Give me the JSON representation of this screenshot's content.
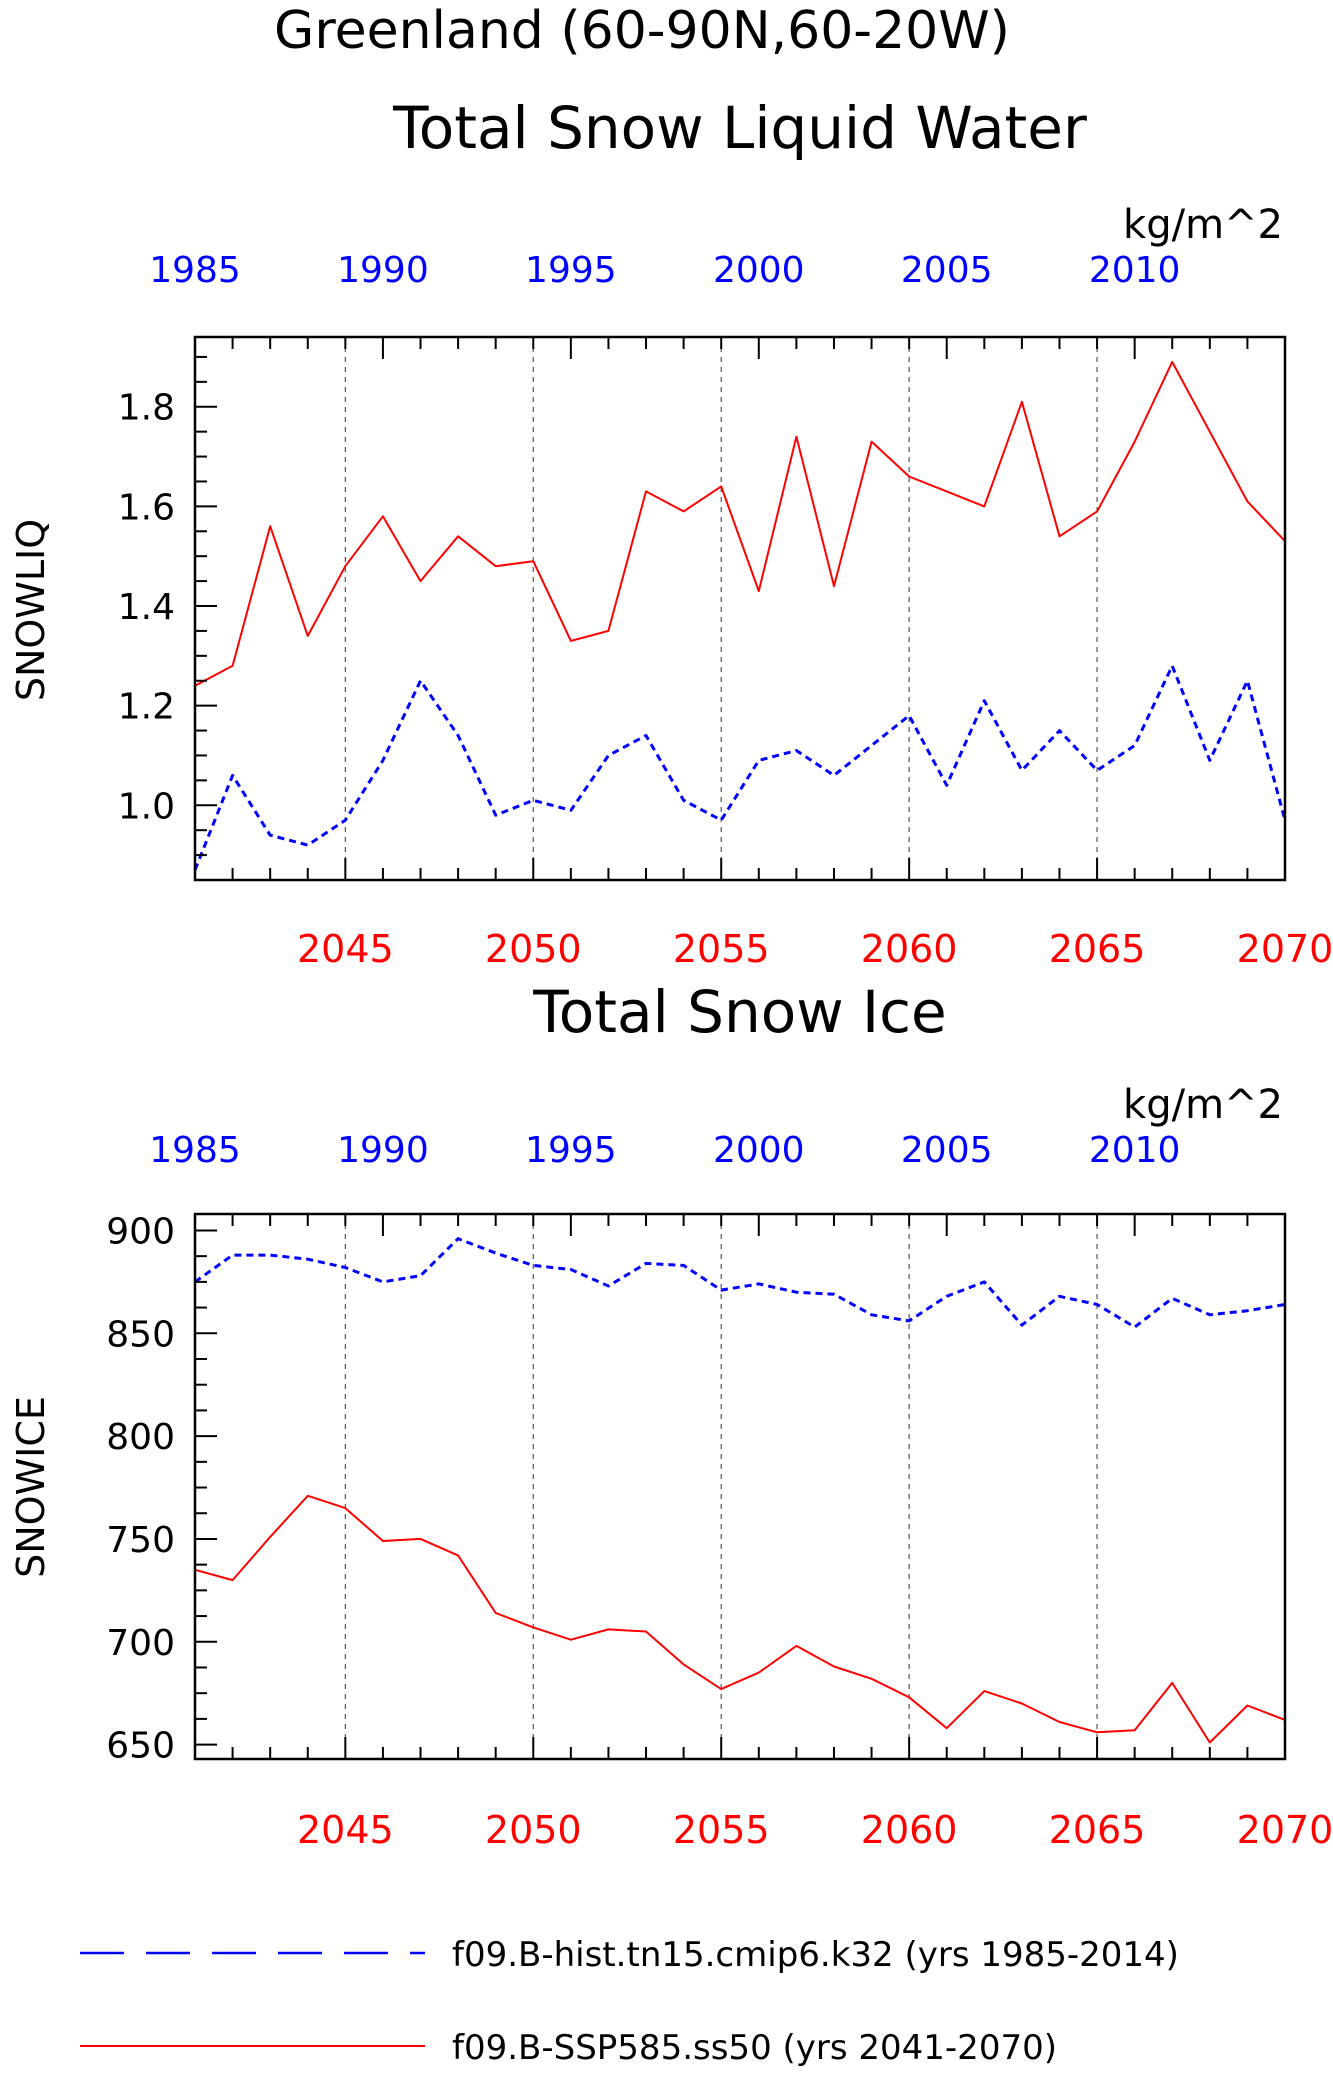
{
  "figure": {
    "title_line1": "Greenland (60-90N,60-20W)",
    "legend": [
      {
        "label": "f09.B-hist.tn15.cmip6.k32 (yrs 1985-2014)",
        "color": "#0000ff",
        "style": "dashed"
      },
      {
        "label": "f09.B-SSP585.ss50 (yrs 2041-2070)",
        "color": "#ff0000",
        "style": "solid"
      }
    ]
  },
  "chart_data": [
    {
      "type": "line",
      "title": "Total Snow Liquid Water",
      "units": "kg/m^2",
      "ylabel": "SNOWLIQ",
      "ylim": [
        0.85,
        1.94
      ],
      "yticks": [
        1.0,
        1.2,
        1.4,
        1.6,
        1.8
      ],
      "ytick_labels": [
        "1.0",
        "1.2",
        "1.4",
        "1.6",
        "1.8"
      ],
      "x_bottom": {
        "range": [
          2041,
          2070
        ],
        "ticks": [
          2045,
          2050,
          2055,
          2060,
          2065,
          2070
        ],
        "color": "#ff0000"
      },
      "x_top": {
        "range": [
          1985,
          2014
        ],
        "ticks": [
          1985,
          1990,
          1995,
          2000,
          2005,
          2010
        ],
        "color": "#0000ff"
      },
      "grid": "vertical dashed at labelled bottom ticks",
      "series": [
        {
          "name": "f09.B-SSP585.ss50 (yrs 2041-2070)",
          "axis": "bottom",
          "color": "#ff0000",
          "style": "solid",
          "x": [
            2041,
            2042,
            2043,
            2044,
            2045,
            2046,
            2047,
            2048,
            2049,
            2050,
            2051,
            2052,
            2053,
            2054,
            2055,
            2056,
            2057,
            2058,
            2059,
            2060,
            2061,
            2062,
            2063,
            2064,
            2065,
            2066,
            2067,
            2068,
            2069,
            2070
          ],
          "values": [
            1.24,
            1.28,
            1.56,
            1.34,
            1.48,
            1.58,
            1.45,
            1.54,
            1.48,
            1.49,
            1.33,
            1.35,
            1.63,
            1.59,
            1.64,
            1.43,
            1.74,
            1.44,
            1.73,
            1.66,
            1.63,
            1.6,
            1.81,
            1.54,
            1.59,
            1.73,
            1.89,
            1.75,
            1.61,
            1.53
          ]
        },
        {
          "name": "f09.B-hist.tn15.cmip6.k32 (yrs 1985-2014)",
          "axis": "top",
          "color": "#0000ff",
          "style": "dashed",
          "x": [
            1985,
            1986,
            1987,
            1988,
            1989,
            1990,
            1991,
            1992,
            1993,
            1994,
            1995,
            1996,
            1997,
            1998,
            1999,
            2000,
            2001,
            2002,
            2003,
            2004,
            2005,
            2006,
            2007,
            2008,
            2009,
            2010,
            2011,
            2012,
            2013,
            2014
          ],
          "values": [
            0.87,
            1.06,
            0.94,
            0.92,
            0.97,
            1.09,
            1.25,
            1.14,
            0.98,
            1.01,
            0.99,
            1.1,
            1.14,
            1.01,
            0.97,
            1.09,
            1.11,
            1.06,
            1.12,
            1.18,
            1.04,
            1.21,
            1.07,
            1.15,
            1.07,
            1.12,
            1.28,
            1.09,
            1.25,
            0.97
          ]
        }
      ]
    },
    {
      "type": "line",
      "title": "Total Snow Ice",
      "units": "kg/m^2",
      "ylabel": "SNOWICE",
      "ylim": [
        643,
        908
      ],
      "yticks": [
        650,
        700,
        750,
        800,
        850,
        900
      ],
      "ytick_labels": [
        "650",
        "700",
        "750",
        "800",
        "850",
        "900"
      ],
      "x_bottom": {
        "range": [
          2041,
          2070
        ],
        "ticks": [
          2045,
          2050,
          2055,
          2060,
          2065,
          2070
        ],
        "color": "#ff0000"
      },
      "x_top": {
        "range": [
          1985,
          2014
        ],
        "ticks": [
          1985,
          1990,
          1995,
          2000,
          2005,
          2010
        ],
        "color": "#0000ff"
      },
      "grid": "vertical dashed at labelled bottom ticks",
      "series": [
        {
          "name": "f09.B-SSP585.ss50 (yrs 2041-2070)",
          "axis": "bottom",
          "color": "#ff0000",
          "style": "solid",
          "x": [
            2041,
            2042,
            2043,
            2044,
            2045,
            2046,
            2047,
            2048,
            2049,
            2050,
            2051,
            2052,
            2053,
            2054,
            2055,
            2056,
            2057,
            2058,
            2059,
            2060,
            2061,
            2062,
            2063,
            2064,
            2065,
            2066,
            2067,
            2068,
            2069,
            2070
          ],
          "values": [
            735,
            730,
            751,
            771,
            765,
            749,
            750,
            742,
            714,
            707,
            701,
            706,
            705,
            689,
            677,
            685,
            698,
            688,
            682,
            673,
            658,
            676,
            670,
            661,
            656,
            657,
            680,
            651,
            669,
            662
          ]
        },
        {
          "name": "f09.B-hist.tn15.cmip6.k32 (yrs 1985-2014)",
          "axis": "top",
          "color": "#0000ff",
          "style": "dashed",
          "x": [
            1985,
            1986,
            1987,
            1988,
            1989,
            1990,
            1991,
            1992,
            1993,
            1994,
            1995,
            1996,
            1997,
            1998,
            1999,
            2000,
            2001,
            2002,
            2003,
            2004,
            2005,
            2006,
            2007,
            2008,
            2009,
            2010,
            2011,
            2012,
            2013,
            2014
          ],
          "values": [
            875,
            888,
            888,
            886,
            882,
            875,
            878,
            896,
            889,
            883,
            881,
            873,
            884,
            883,
            871,
            874,
            870,
            869,
            859,
            856,
            868,
            875,
            854,
            868,
            864,
            853,
            867,
            859,
            861,
            864
          ]
        }
      ]
    }
  ]
}
